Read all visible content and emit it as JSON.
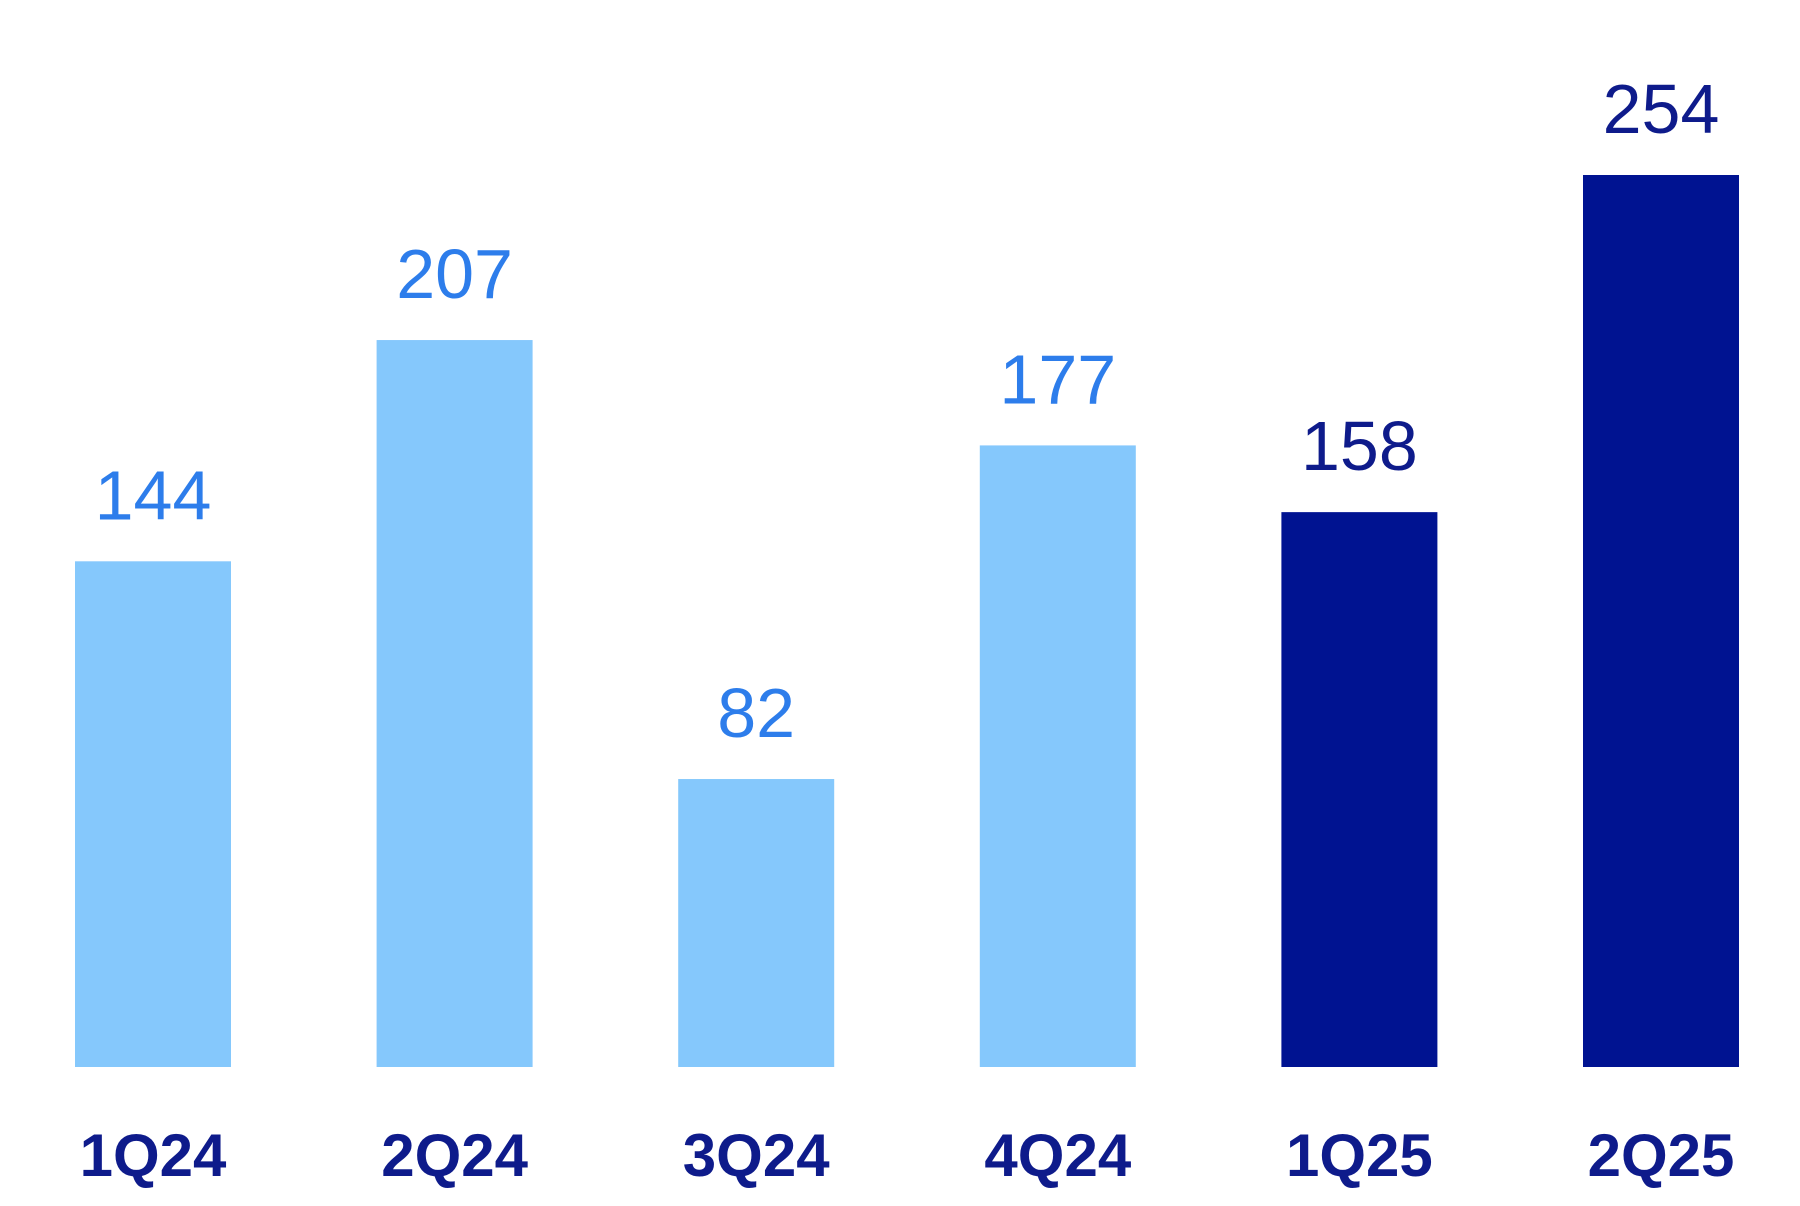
{
  "chart_data": {
    "type": "bar",
    "title": "",
    "xlabel": "",
    "ylabel": "",
    "categories": [
      "1Q24",
      "2Q24",
      "3Q24",
      "4Q24",
      "1Q25",
      "2Q25"
    ],
    "values": [
      144,
      207,
      82,
      177,
      158,
      254
    ],
    "value_labels": [
      "144",
      "207",
      "82",
      "177",
      "158",
      "254"
    ],
    "ylim": [
      0,
      254
    ],
    "grid": false,
    "legend": "none",
    "colors": {
      "bars_2024": "#85C8FC",
      "bars_2025": "#001391",
      "labels_2024": "#2D7DEB",
      "labels_2025": "#0E1B8B",
      "category_labels": "#0E1B8B"
    },
    "bar_color_group": [
      "2024",
      "2024",
      "2024",
      "2024",
      "2025",
      "2025"
    ]
  }
}
